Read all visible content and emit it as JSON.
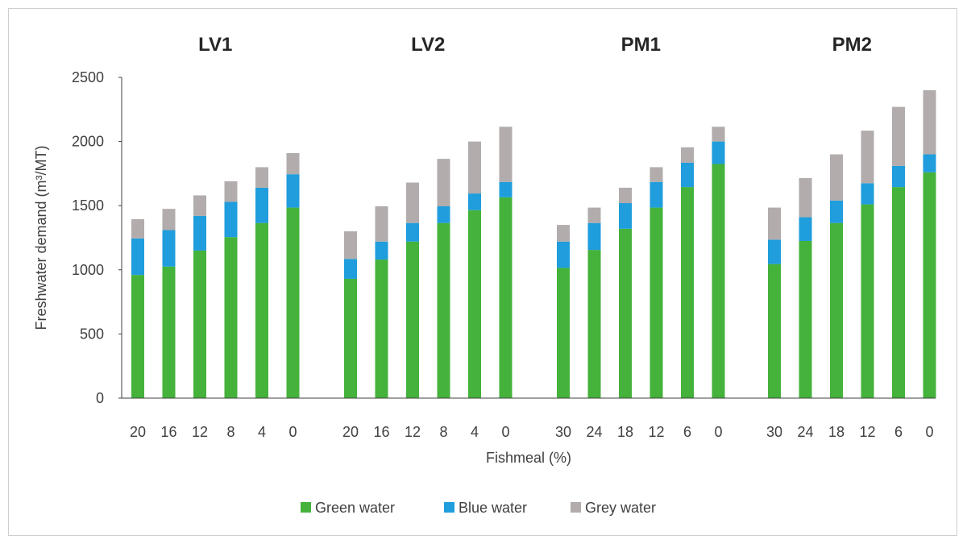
{
  "chart_data": {
    "type": "bar",
    "stacked": true,
    "ylabel": "Freshwater demand  (m³/MT)",
    "xlabel": "Fishmeal (%)",
    "ylim": [
      0,
      2500
    ],
    "yticks": [
      0,
      500,
      1000,
      1500,
      2000,
      2500
    ],
    "legend_position": "bottom",
    "series_meta": [
      {
        "name": "Green water",
        "color": "#44b23b"
      },
      {
        "name": "Blue water",
        "color": "#1f9ddc"
      },
      {
        "name": "Grey water",
        "color": "#b2acac"
      }
    ],
    "panels": [
      {
        "title": "LV1",
        "categories": [
          "20",
          "16",
          "12",
          "8",
          "4",
          "0"
        ],
        "series": [
          {
            "name": "Green water",
            "values": [
              960,
              1025,
              1150,
              1255,
              1365,
              1485
            ]
          },
          {
            "name": "Blue water",
            "values": [
              285,
              285,
              270,
              275,
              275,
              260
            ]
          },
          {
            "name": "Grey water",
            "values": [
              150,
              165,
              160,
              160,
              160,
              165
            ]
          }
        ]
      },
      {
        "title": "LV2",
        "categories": [
          "20",
          "16",
          "12",
          "8",
          "4",
          "0"
        ],
        "series": [
          {
            "name": "Green water",
            "values": [
              930,
              1080,
              1220,
              1365,
              1465,
              1565
            ]
          },
          {
            "name": "Blue water",
            "values": [
              155,
              140,
              145,
              130,
              130,
              120
            ]
          },
          {
            "name": "Grey water",
            "values": [
              215,
              275,
              315,
              370,
              405,
              430
            ]
          }
        ]
      },
      {
        "title": "PM1",
        "categories": [
          "30",
          "24",
          "18",
          "12",
          "6",
          "0"
        ],
        "series": [
          {
            "name": "Green water",
            "values": [
              1015,
              1155,
              1320,
              1485,
              1645,
              1825
            ]
          },
          {
            "name": "Blue water",
            "values": [
              205,
              210,
              200,
              200,
              190,
              175
            ]
          },
          {
            "name": "Grey water",
            "values": [
              130,
              120,
              120,
              115,
              120,
              115
            ]
          }
        ]
      },
      {
        "title": "PM2",
        "categories": [
          "30",
          "24",
          "18",
          "12",
          "6",
          "0"
        ],
        "series": [
          {
            "name": "Green water",
            "values": [
              1045,
              1225,
              1365,
              1510,
              1645,
              1760
            ]
          },
          {
            "name": "Blue water",
            "values": [
              190,
              185,
              175,
              165,
              165,
              140
            ]
          },
          {
            "name": "Grey water",
            "values": [
              250,
              305,
              360,
              410,
              460,
              500
            ]
          }
        ]
      }
    ]
  }
}
